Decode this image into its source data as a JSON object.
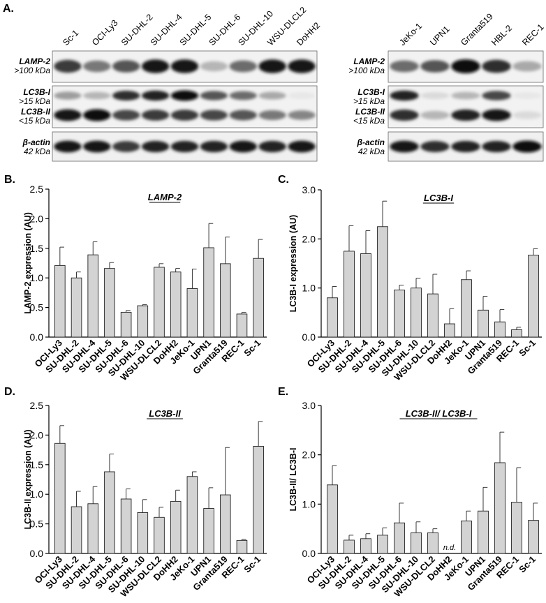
{
  "panel_labels": {
    "A": "A.",
    "B": "B.",
    "C": "C.",
    "D": "D.",
    "E": "E."
  },
  "blot": {
    "left_lanes": [
      "Sc-1",
      "OCI-Ly3",
      "SU-DHL-2",
      "SU-DHL-4",
      "SU-DHL-5",
      "SU-DHL-6",
      "SU-DHL-10",
      "WSU-DLCL2",
      "DoHH2"
    ],
    "right_lanes": [
      "JeKo-1",
      "UPN1",
      "Granta519",
      "HBL-2",
      "REC-1"
    ],
    "rows": {
      "lamp2": {
        "name": "LAMP-2",
        "size": ">100 kDa"
      },
      "lc3b1": {
        "name": "LC3B-I",
        "size": ">15 kDa"
      },
      "lc3b2": {
        "name": "LC3B-II",
        "size": "<15 kDa"
      },
      "actin": {
        "name": "β-actin",
        "size": "42 kDa"
      }
    },
    "intensity": {
      "left_lamp2": [
        0.8,
        0.55,
        0.7,
        0.95,
        0.95,
        0.3,
        0.6,
        0.95,
        0.95
      ],
      "left_lc3b1": [
        0.4,
        0.3,
        0.85,
        0.9,
        1.0,
        0.7,
        0.6,
        0.35,
        0.1
      ],
      "left_lc3b2": [
        0.95,
        1.0,
        0.75,
        0.8,
        0.8,
        0.75,
        0.7,
        0.55,
        0.5
      ],
      "left_actin": [
        0.95,
        0.95,
        0.8,
        0.9,
        0.9,
        0.9,
        0.95,
        0.9,
        0.95
      ],
      "right_lamp2": [
        0.6,
        0.7,
        1.0,
        0.85,
        0.35
      ],
      "right_lc3b1": [
        0.9,
        0.15,
        0.3,
        0.75,
        0.1
      ],
      "right_lc3b2": [
        0.85,
        0.3,
        0.9,
        0.95,
        0.15
      ],
      "right_actin": [
        0.95,
        0.85,
        0.9,
        0.9,
        1.0
      ]
    }
  },
  "chart_data": [
    {
      "panel": "B",
      "type": "bar",
      "title": "LAMP-2",
      "ylabel": "LAMP-2 expression (AU)",
      "ylim": [
        0,
        2.5
      ],
      "yticks": [
        "0.0",
        "0.5",
        "1.0",
        "1.5",
        "2.0",
        "2.5"
      ],
      "categories": [
        "OCI-Ly3",
        "SU-DHL-2",
        "SU-DHL-4",
        "SU-DHL-5",
        "SU-DHL-6",
        "SU-DHL-10",
        "WSU-DLCL2",
        "DoHH2",
        "JeKo-1",
        "UPN1",
        "Granta519",
        "REC-1",
        "Sc-1"
      ],
      "values": [
        1.21,
        1.0,
        1.39,
        1.16,
        0.42,
        0.53,
        1.18,
        1.1,
        0.82,
        1.51,
        1.24,
        0.39,
        1.33
      ],
      "errors": [
        0.31,
        0.1,
        0.22,
        0.1,
        0.03,
        0.02,
        0.06,
        0.06,
        0.33,
        0.41,
        0.45,
        0.03,
        0.32
      ],
      "annotation": ""
    },
    {
      "panel": "C",
      "type": "bar",
      "title": "LC3B-I",
      "ylabel": "LC3B-I expression (AU)",
      "ylim": [
        0,
        3.0
      ],
      "yticks": [
        "0.0",
        "1.0",
        "2.0",
        "3.0"
      ],
      "categories": [
        "OCI-Ly3",
        "SU-DHL-2",
        "SU-DHL-4",
        "SU-DHL-5",
        "SU-DHL-6",
        "SU-DHL-10",
        "WSU-DLCL2",
        "DoHH2",
        "JeKo-1",
        "UPN1",
        "Granta519",
        "REC-1",
        "Sc-1"
      ],
      "values": [
        0.8,
        1.75,
        1.7,
        2.25,
        0.96,
        1.0,
        0.88,
        0.27,
        1.17,
        0.55,
        0.31,
        0.15,
        1.67
      ],
      "errors": [
        0.23,
        0.52,
        0.47,
        0.52,
        0.1,
        0.2,
        0.4,
        0.31,
        0.18,
        0.28,
        0.25,
        0.05,
        0.13
      ],
      "annotation": ""
    },
    {
      "panel": "D",
      "type": "bar",
      "title": "LC3B-II",
      "ylabel": "LC3B-II expression (AU)",
      "ylim": [
        0,
        2.5
      ],
      "yticks": [
        "0.0",
        "0.5",
        "1.0",
        "1.5",
        "2.0",
        "2.5"
      ],
      "categories": [
        "OCI-Ly3",
        "SU-DHL-2",
        "SU-DHL-4",
        "SU-DHL-5",
        "SU-DHL-6",
        "SU-DHL-10",
        "WSU-DLCL2",
        "DoHH2",
        "JeKo-1",
        "UPN1",
        "Granta519",
        "REC-1",
        "Sc-1"
      ],
      "values": [
        1.86,
        0.79,
        0.84,
        1.38,
        0.92,
        0.69,
        0.61,
        0.88,
        1.3,
        0.76,
        0.99,
        0.22,
        1.81
      ],
      "errors": [
        0.3,
        0.26,
        0.29,
        0.3,
        0.17,
        0.22,
        0.17,
        0.19,
        0.08,
        0.35,
        0.8,
        0.02,
        0.42
      ],
      "annotation": ""
    },
    {
      "panel": "E",
      "type": "bar",
      "title": "LC3B-II/ LC3B-I",
      "ylabel": "LC3B-II/ LC3B-I",
      "ylim": [
        0,
        3.0
      ],
      "yticks": [
        "0.0",
        "1.0",
        "2.0",
        "3.0"
      ],
      "categories": [
        "OCI-Ly3",
        "SU-DHL-2",
        "SU-DHL-4",
        "SU-DHL-5",
        "SU-DHL-6",
        "SU-DHL-10",
        "WSU-DLCL2",
        "DoHH2",
        "JeKo-1",
        "UPN1",
        "Granta519",
        "REC-1",
        "Sc-1"
      ],
      "values": [
        1.39,
        0.27,
        0.3,
        0.37,
        0.62,
        0.42,
        0.42,
        null,
        0.66,
        0.86,
        1.84,
        1.04,
        0.67
      ],
      "errors": [
        0.39,
        0.1,
        0.1,
        0.15,
        0.4,
        0.22,
        0.08,
        null,
        0.2,
        0.48,
        0.62,
        0.7,
        0.35
      ],
      "annotation": "n.d."
    }
  ]
}
